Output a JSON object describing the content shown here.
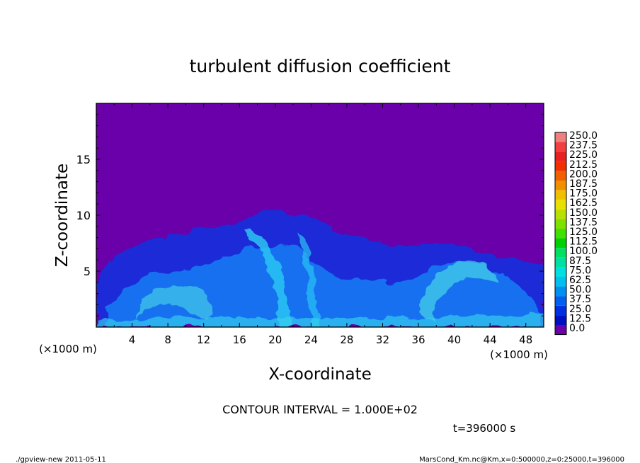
{
  "chart_data": {
    "type": "heatmap",
    "title": "turbulent diffusion coefficient",
    "xlabel": "X-coordinate",
    "ylabel": "Z-coordinate",
    "x_unit_left": "(×1000 m)",
    "x_unit_right": "(×1000 m)",
    "xlim": [
      0,
      50
    ],
    "ylim": [
      0,
      20
    ],
    "x_ticks": [
      "4",
      "8",
      "12",
      "16",
      "20",
      "24",
      "28",
      "32",
      "36",
      "40",
      "44",
      "48"
    ],
    "y_ticks": [
      "5",
      "10",
      "15"
    ],
    "colorbar_labels": [
      "250.0",
      "237.5",
      "225.0",
      "212.5",
      "200.0",
      "187.5",
      "175.0",
      "162.5",
      "150.0",
      "137.5",
      "125.0",
      "112.5",
      "100.0",
      "87.5",
      "75.0",
      "62.5",
      "50.0",
      "37.5",
      "25.0",
      "12.5",
      "0.0"
    ],
    "colorbar_colors": [
      "#f08080",
      "#f04040",
      "#e82020",
      "#f03000",
      "#f06000",
      "#f09000",
      "#f0c000",
      "#e8e000",
      "#b8e000",
      "#80e000",
      "#40e000",
      "#00d000",
      "#00e060",
      "#00e0a0",
      "#00e0e0",
      "#00c0f0",
      "#0090f0",
      "#0060f0",
      "#0030e0",
      "#0010c0",
      "#6a00aa"
    ],
    "background_value_color": "#6a00aa",
    "annotations": {
      "contour_interval": "CONTOUR INTERVAL = 1.000E+02",
      "time": "t=396000 s"
    }
  },
  "footer": {
    "left": "./gpview-new   2011-05-11",
    "right": "MarsCond_Km.nc@Km,x=0:500000,z=0:25000,t=396000"
  }
}
